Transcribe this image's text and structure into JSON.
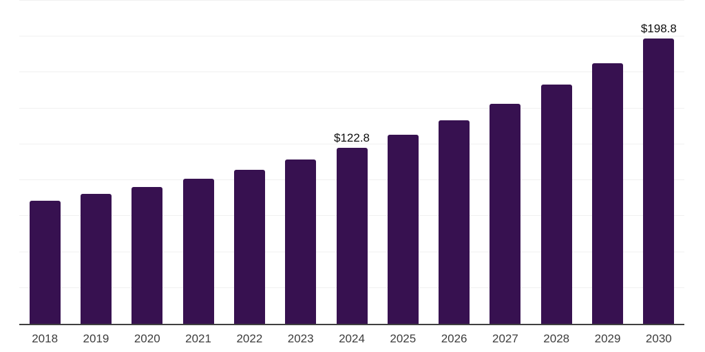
{
  "chart_data": {
    "type": "bar",
    "title": "",
    "xlabel": "",
    "ylabel": "",
    "categories": [
      "2018",
      "2019",
      "2020",
      "2021",
      "2022",
      "2023",
      "2024",
      "2025",
      "2026",
      "2027",
      "2028",
      "2029",
      "2030"
    ],
    "values": [
      85.5,
      90.7,
      95.5,
      101.2,
      107.4,
      114.6,
      122.8,
      131.8,
      141.8,
      153.2,
      166.6,
      181.5,
      198.8
    ],
    "data_labels": [
      "",
      "",
      "",
      "",
      "",
      "",
      "$122.8",
      "",
      "",
      "",
      "",
      "",
      "$198.8"
    ],
    "ylim": [
      0,
      225
    ],
    "grid_step": 25,
    "grid": true,
    "y_tick_labels_visible": false,
    "legend": false
  },
  "colors": {
    "bar": "#371150",
    "gridline": "#f0f0f0",
    "axis": "#3f3f3f",
    "tick_label": "#3d3d3d",
    "data_label": "#0d0d0d",
    "background": "#ffffff"
  }
}
